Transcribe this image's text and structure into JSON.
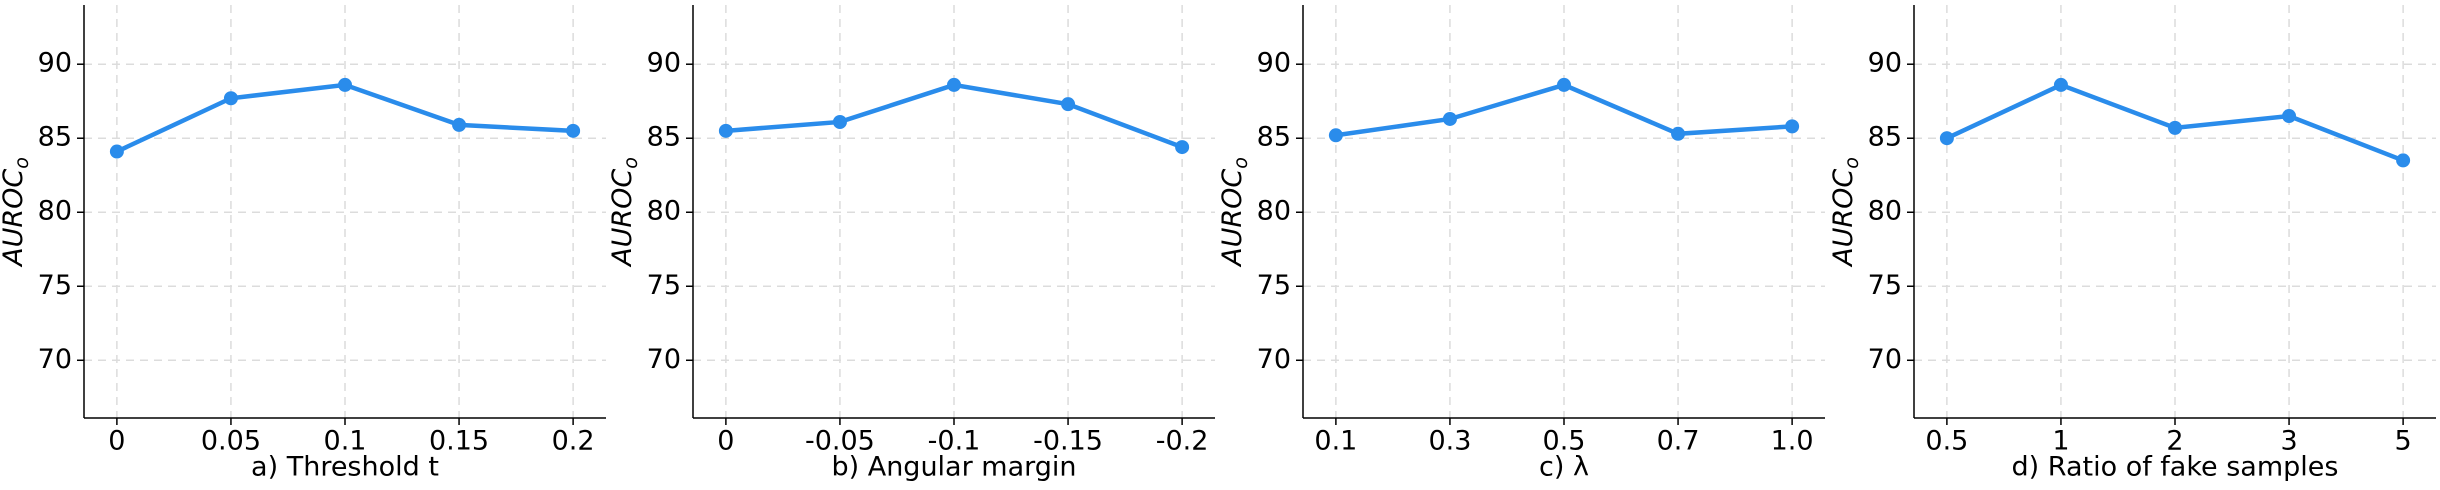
{
  "chart_data": [
    {
      "type": "line",
      "xlabel": "a) Threshold t",
      "ylabel": "AUROC",
      "ylabel_subscript": "o",
      "categories": [
        "0",
        "0.05",
        "0.1",
        "0.15",
        "0.2"
      ],
      "series": [
        {
          "color": "#2a8ceb",
          "values": [
            84.1,
            87.7,
            88.6,
            85.9,
            85.5
          ]
        }
      ],
      "ylim": [
        66.1,
        94
      ],
      "yticks": [
        70,
        75,
        80,
        85,
        90
      ],
      "grid": true
    },
    {
      "type": "line",
      "xlabel": "b) Angular margin",
      "ylabel": "AUROC",
      "ylabel_subscript": "o",
      "categories": [
        "0",
        "-0.05",
        "-0.1",
        "-0.15",
        "-0.2"
      ],
      "series": [
        {
          "color": "#2a8ceb",
          "values": [
            85.5,
            86.1,
            88.6,
            87.3,
            84.4
          ]
        }
      ],
      "ylim": [
        66.1,
        94
      ],
      "yticks": [
        70,
        75,
        80,
        85,
        90
      ],
      "grid": true
    },
    {
      "type": "line",
      "xlabel": "c) λ",
      "ylabel": "AUROC",
      "ylabel_subscript": "o",
      "categories": [
        "0.1",
        "0.3",
        "0.5",
        "0.7",
        "1.0"
      ],
      "series": [
        {
          "color": "#2a8ceb",
          "values": [
            85.2,
            86.3,
            88.6,
            85.3,
            85.8
          ]
        }
      ],
      "ylim": [
        66.1,
        94
      ],
      "yticks": [
        70,
        75,
        80,
        85,
        90
      ],
      "grid": true
    },
    {
      "type": "line",
      "xlabel": "d) Ratio of fake samples",
      "ylabel": "AUROC",
      "ylabel_subscript": "o",
      "categories": [
        "0.5",
        "1",
        "2",
        "3",
        "5"
      ],
      "series": [
        {
          "color": "#2a8ceb",
          "values": [
            85.0,
            88.6,
            85.7,
            86.5,
            83.5
          ]
        }
      ],
      "ylim": [
        66.1,
        94
      ],
      "yticks": [
        70,
        75,
        80,
        85,
        90
      ],
      "grid": true
    }
  ]
}
